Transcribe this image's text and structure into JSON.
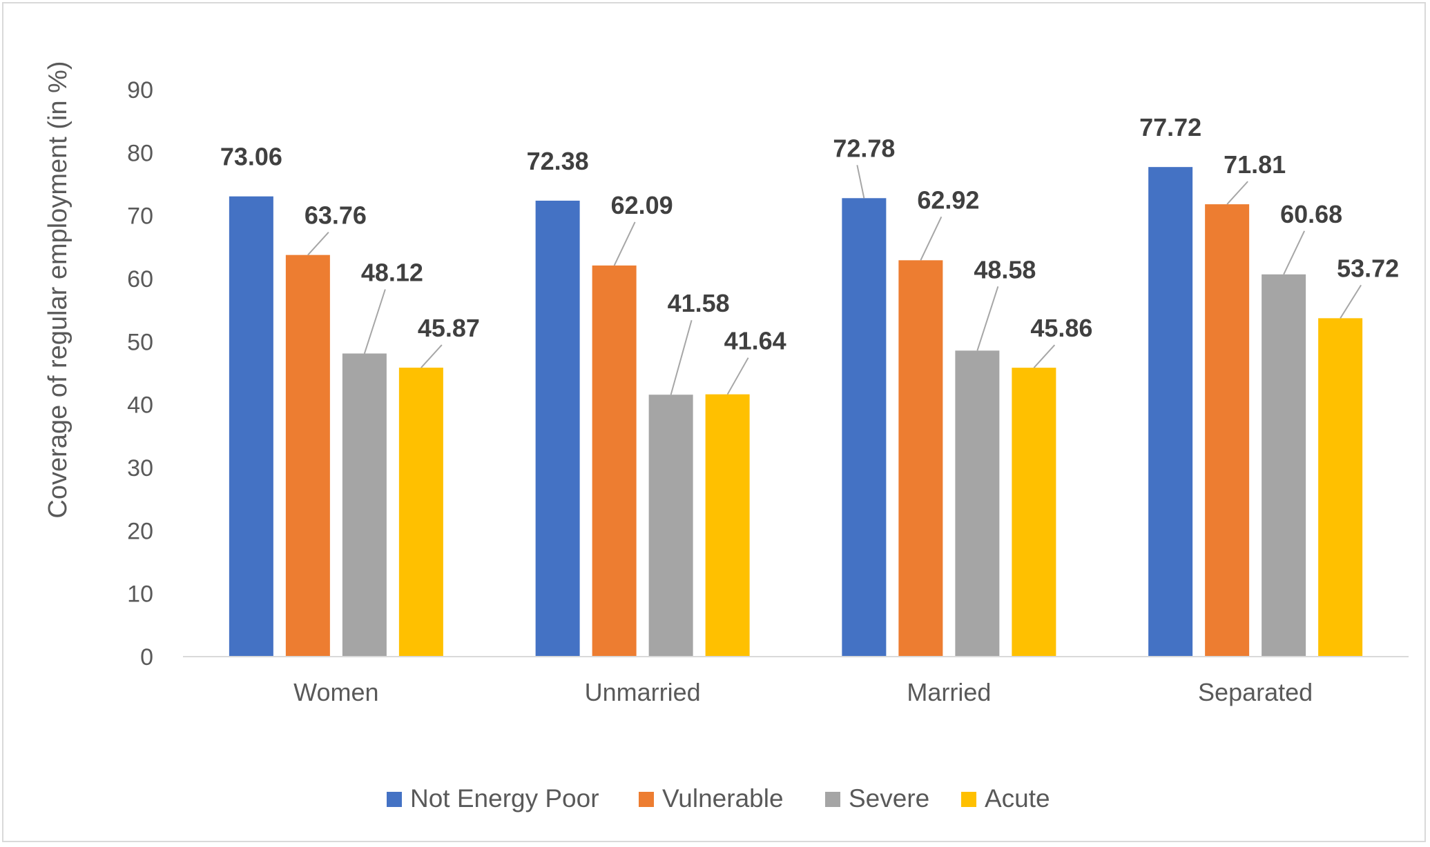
{
  "chart_data": {
    "type": "bar",
    "ylabel": "Coverage of regular employment (in %)",
    "xlabel": "",
    "ylim": [
      0,
      90
    ],
    "yticks": [
      0,
      10,
      20,
      30,
      40,
      50,
      60,
      70,
      80,
      90
    ],
    "grid": false,
    "legend_position": "bottom",
    "categories": [
      "Women",
      "Unmarried",
      "Married",
      "Separated"
    ],
    "series": [
      {
        "name": "Not Energy Poor",
        "color": "#4472c4",
        "values": [
          73.06,
          72.38,
          72.78,
          77.72
        ]
      },
      {
        "name": "Vulnerable",
        "color": "#ed7d31",
        "values": [
          63.76,
          62.09,
          62.92,
          71.81
        ]
      },
      {
        "name": "Severe",
        "color": "#a5a5a5",
        "values": [
          48.12,
          41.58,
          48.58,
          60.68
        ]
      },
      {
        "name": "Acute",
        "color": "#ffc000",
        "values": [
          45.87,
          41.64,
          45.86,
          53.72
        ]
      }
    ],
    "data_labels": [
      [
        "73.06",
        "63.76",
        "48.12",
        "45.87"
      ],
      [
        "72.38",
        "62.09",
        "41.58",
        "41.64"
      ],
      [
        "72.78",
        "62.92",
        "48.58",
        "45.86"
      ],
      [
        "77.72",
        "71.81",
        "60.68",
        "53.72"
      ]
    ]
  }
}
